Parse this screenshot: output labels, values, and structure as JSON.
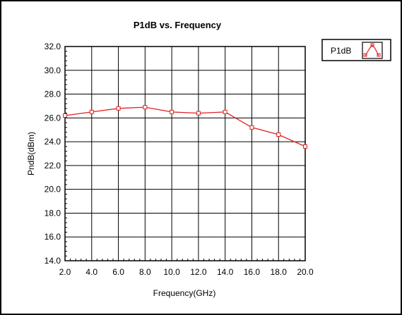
{
  "chart_data": {
    "type": "line",
    "title": "P1dB vs. Frequency",
    "xlabel": "Frequency(GHz)",
    "ylabel": "PndB(dBm)",
    "xlim": [
      2.0,
      20.0
    ],
    "ylim": [
      14.0,
      32.0
    ],
    "x_ticks": [
      "2.0",
      "4.0",
      "6.0",
      "8.0",
      "10.0",
      "12.0",
      "14.0",
      "16.0",
      "18.0",
      "20.0"
    ],
    "y_ticks": [
      "14.0",
      "16.0",
      "18.0",
      "20.0",
      "22.0",
      "24.0",
      "26.0",
      "28.0",
      "30.0",
      "32.0"
    ],
    "grid": true,
    "legend_position": "top-right",
    "series": [
      {
        "name": "P1dB",
        "color": "#e02020",
        "marker": "square",
        "x": [
          2.0,
          4.0,
          6.0,
          8.0,
          10.0,
          12.0,
          14.0,
          16.0,
          18.0,
          20.0
        ],
        "y": [
          26.2,
          26.5,
          26.8,
          26.9,
          26.5,
          26.4,
          26.5,
          25.2,
          24.6,
          23.6
        ]
      }
    ]
  }
}
